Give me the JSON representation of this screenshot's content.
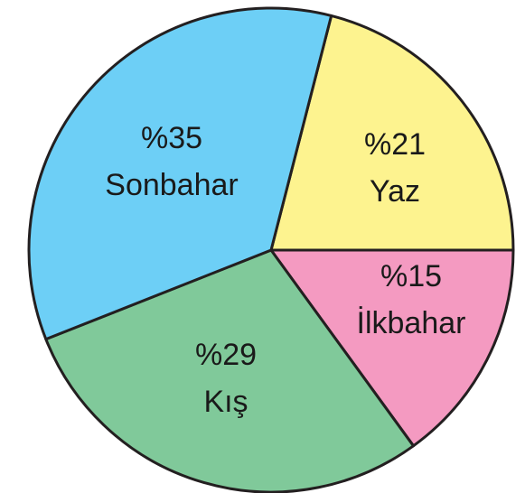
{
  "chart_data": {
    "type": "pie",
    "categories": [
      "Yaz",
      "İlkbahar",
      "Kış",
      "Sonbahar"
    ],
    "values": [
      21,
      15,
      29,
      35
    ],
    "value_labels": [
      "%21",
      "%15",
      "%29",
      "%35"
    ],
    "colors": [
      "#fdf38f",
      "#f49ac1",
      "#80c99a",
      "#6dcff6"
    ]
  }
}
